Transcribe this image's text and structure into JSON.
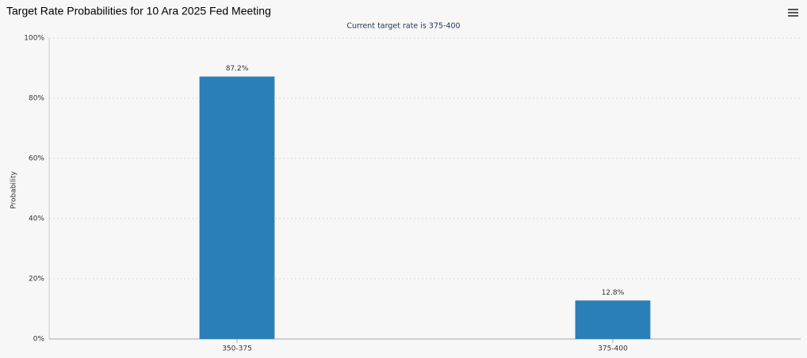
{
  "chart_data": {
    "type": "bar",
    "title": "Target Rate Probabilities for 10 Ara 2025 Fed Meeting",
    "subtitle": "Current target rate is 375-400",
    "y_label": "Probability",
    "categories": [
      "350-375",
      "375-400"
    ],
    "values": [
      87.2,
      12.8
    ],
    "value_labels": [
      "87.2%",
      "12.8%"
    ],
    "color": "#2b7fb8",
    "ylim": [
      0,
      100
    ],
    "yticks": [
      {
        "value": 0,
        "label": "0%"
      },
      {
        "value": 20,
        "label": "20%"
      },
      {
        "value": 40,
        "label": "40%"
      },
      {
        "value": 60,
        "label": "60%"
      },
      {
        "value": 80,
        "label": "80%"
      },
      {
        "value": 100,
        "label": "100%"
      }
    ],
    "grid": true
  }
}
